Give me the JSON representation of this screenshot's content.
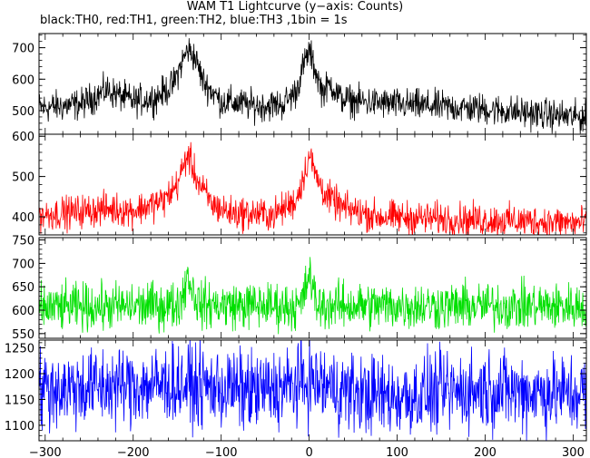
{
  "chart_data": {
    "type": "line",
    "title": "WAM T1 Lightcurve (y−axis: Counts)",
    "subtitle": "black:TH0, red:TH1, green:TH2, blue:TH3 ,1bin = 1s",
    "xlabel": "",
    "ylabel": "",
    "xlim": [
      -307,
      315
    ],
    "x_ticks": [
      "−300",
      "−200",
      "−100",
      "0",
      "100",
      "200",
      "300"
    ],
    "grid": false,
    "panels": [
      {
        "name": "TH0",
        "color": "#000000",
        "ylim": [
          425,
          745
        ],
        "y_ticks": [
          "500",
          "600",
          "700"
        ],
        "anchors_x": [
          -300,
          -260,
          -230,
          -200,
          -175,
          -155,
          -145,
          -138,
          -130,
          -120,
          -100,
          -60,
          -30,
          -15,
          -8,
          0,
          8,
          15,
          25,
          35,
          50,
          100,
          200,
          300,
          310
        ],
        "anchors_y": [
          510,
          520,
          565,
          530,
          540,
          580,
          650,
          695,
          670,
          590,
          530,
          515,
          520,
          560,
          630,
          690,
          620,
          560,
          585,
          540,
          530,
          520,
          505,
          480,
          478
        ],
        "noise": 55
      },
      {
        "name": "TH1",
        "color": "#ff0000",
        "ylim": [
          355,
          605
        ],
        "y_ticks": [
          "400",
          "500",
          "600"
        ],
        "anchors_x": [
          -300,
          -230,
          -200,
          -165,
          -150,
          -138,
          -125,
          -110,
          -90,
          -40,
          -15,
          -5,
          0,
          8,
          20,
          40,
          80,
          300,
          310
        ],
        "anchors_y": [
          405,
          420,
          415,
          440,
          480,
          555,
          480,
          430,
          410,
          405,
          440,
          510,
          555,
          500,
          450,
          420,
          400,
          385,
          385
        ],
        "noise": 45
      },
      {
        "name": "TH2",
        "color": "#00e000",
        "ylim": [
          540,
          755
        ],
        "y_ticks": [
          "550",
          "600",
          "650",
          "700",
          "750"
        ],
        "anchors_x": [
          -300,
          -150,
          -143,
          -138,
          -132,
          -125,
          -10,
          -3,
          0,
          4,
          10,
          300,
          310
        ],
        "anchors_y": [
          605,
          610,
          635,
          680,
          640,
          612,
          608,
          650,
          685,
          640,
          610,
          608,
          608
        ],
        "noise": 55
      },
      {
        "name": "TH3",
        "color": "#0000ff",
        "ylim": [
          1070,
          1265
        ],
        "y_ticks": [
          "1100",
          "1150",
          "1200",
          "1250"
        ],
        "anchors_x": [
          -300,
          -150,
          -60,
          -20,
          0,
          20,
          60,
          100,
          200,
          300,
          310
        ],
        "anchors_y": [
          1170,
          1180,
          1165,
          1175,
          1185,
          1175,
          1160,
          1155,
          1170,
          1160,
          1165
        ],
        "noise": 85
      }
    ]
  }
}
